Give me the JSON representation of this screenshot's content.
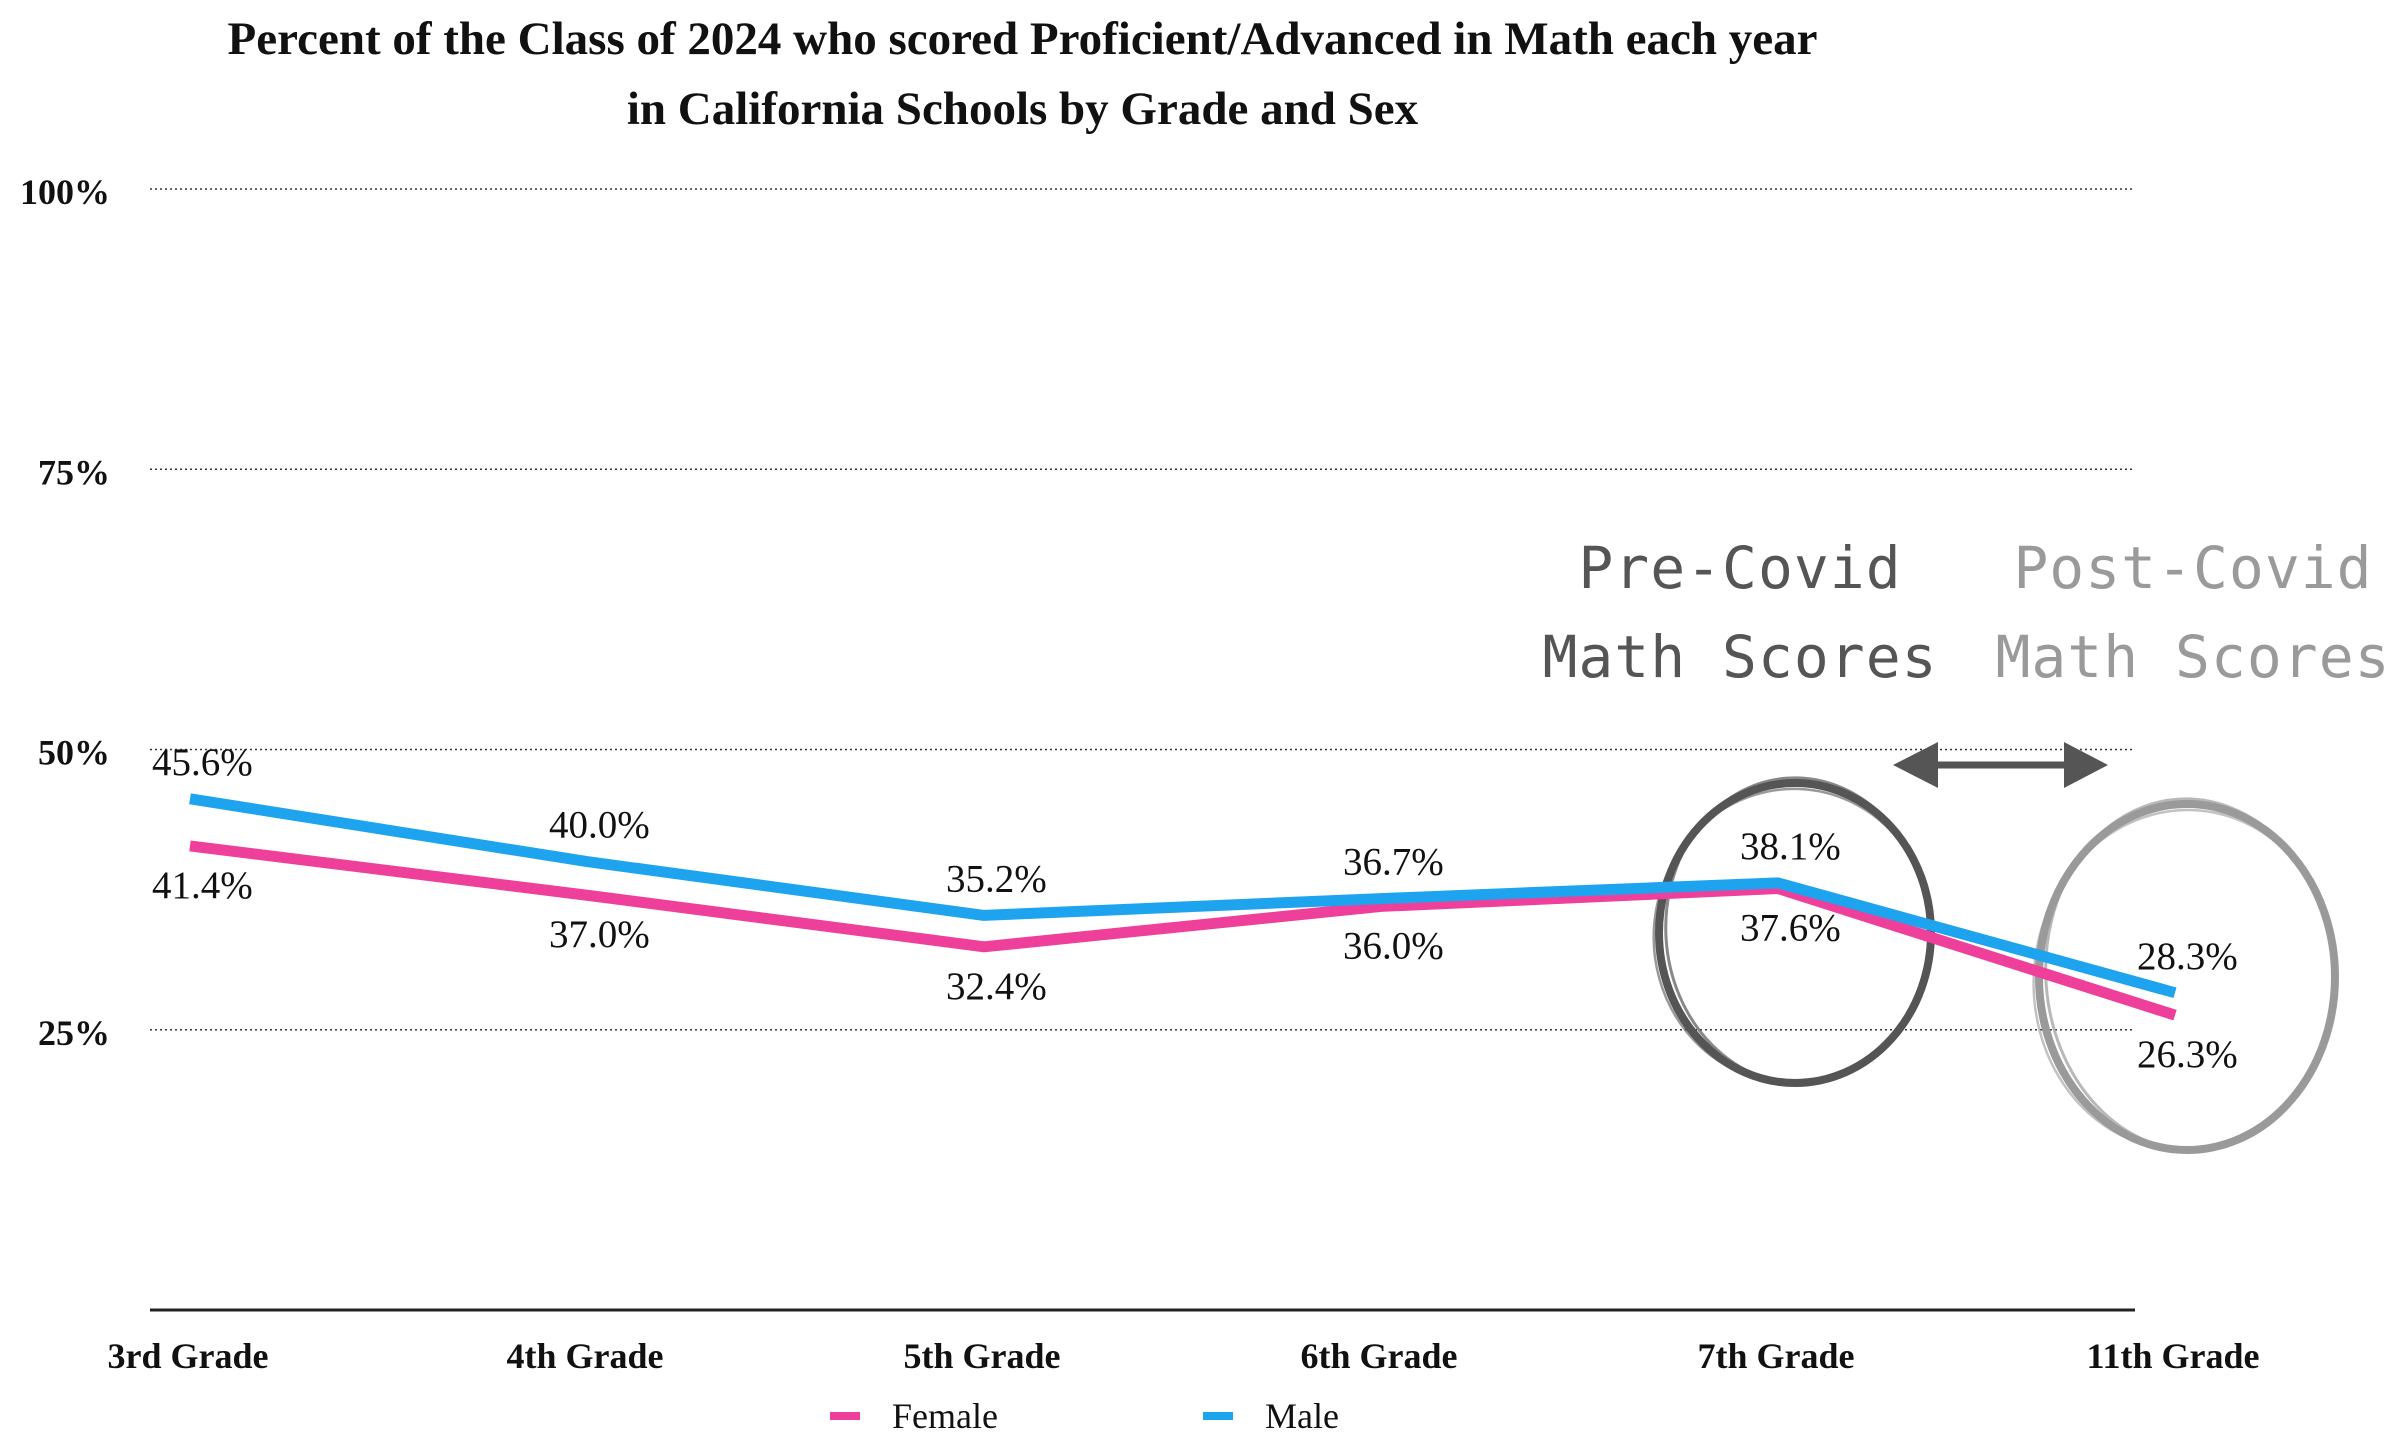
{
  "chart_data": {
    "type": "line",
    "title_lines": [
      "Percent of the Class of 2024 who scored Proficient/Advanced in Math each year",
      "in California Schools by Grade and Sex"
    ],
    "categories": [
      "3rd Grade",
      "4th Grade",
      "5th Grade",
      "6th Grade",
      "7th Grade",
      "11th Grade"
    ],
    "y_ticks": [
      {
        "value": 100,
        "label": "100%"
      },
      {
        "value": 75,
        "label": "75%"
      },
      {
        "value": 50,
        "label": "50%"
      },
      {
        "value": 25,
        "label": "25%"
      }
    ],
    "ylim": [
      0,
      100
    ],
    "grid": true,
    "legend_position": "bottom",
    "series": [
      {
        "name": "Female",
        "color": "#ee3f9a",
        "values": [
          41.4,
          37.0,
          32.4,
          36.0,
          37.6,
          26.3
        ],
        "labels": [
          "41.4%",
          "37.0%",
          "32.4%",
          "36.0%",
          "37.6%",
          "26.3%"
        ]
      },
      {
        "name": "Male",
        "color": "#1ea4ef",
        "values": [
          45.6,
          40.0,
          35.2,
          36.7,
          38.1,
          28.3
        ],
        "labels": [
          "45.6%",
          "40.0%",
          "35.2%",
          "36.7%",
          "38.1%",
          "28.3%"
        ]
      }
    ],
    "annotations": {
      "pre_covid": {
        "lines": [
          "Pre-Covid",
          "Math Scores"
        ],
        "color": "#555555"
      },
      "post_covid": {
        "lines": [
          "Post-Covid",
          "Math Scores"
        ],
        "color": "#9a9a9a"
      }
    }
  }
}
